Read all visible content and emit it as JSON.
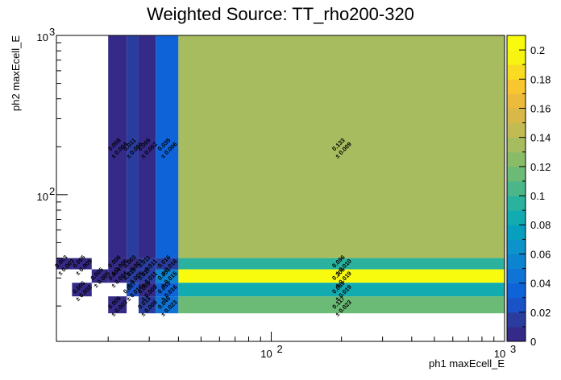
{
  "chart_data": {
    "type": "heatmap",
    "title": "Weighted Source: TT_rho200-320",
    "xlabel": "ph1 maxEcell_E",
    "ylabel": "ph2 maxEcell_E",
    "x_scale": "log",
    "y_scale": "log",
    "xlim": [
      12,
      1000
    ],
    "ylim": [
      12,
      1000
    ],
    "x_ticks": [
      {
        "value": 100,
        "base": "10",
        "exp": "2"
      },
      {
        "value": 1000,
        "base": "10",
        "exp": "3"
      }
    ],
    "y_ticks": [
      {
        "value": 100,
        "base": "10",
        "exp": "2"
      },
      {
        "value": 1000,
        "base": "10",
        "exp": "3"
      }
    ],
    "x_bin_edges": [
      12,
      14,
      17,
      20,
      24,
      27,
      32,
      40,
      1000
    ],
    "y_bin_edges": [
      12,
      15,
      18,
      23,
      28,
      34,
      40,
      1000
    ],
    "cells": [
      {
        "xi": 0,
        "yi": 5,
        "value": 0.003,
        "error": 0.003
      },
      {
        "xi": 1,
        "yi": 5,
        "value": 0.005,
        "error": 0.005
      },
      {
        "xi": 3,
        "yi": 5,
        "value": 0.006,
        "error": 0.006
      },
      {
        "xi": 4,
        "yi": 5,
        "value": 0.003,
        "error": 0.003
      },
      {
        "xi": 5,
        "yi": 5,
        "value": 0.011,
        "error": 0.011
      },
      {
        "xi": 6,
        "yi": 5,
        "value": 0.016,
        "error": 0.016
      },
      {
        "xi": 7,
        "yi": 5,
        "value": 0.096,
        "error": 0.01
      },
      {
        "xi": 2,
        "yi": 4,
        "value": 0.005,
        "error": 0.005
      },
      {
        "xi": 3,
        "yi": 4,
        "value": 0.004,
        "error": 0.004
      },
      {
        "xi": 4,
        "yi": 4,
        "value": 0.013,
        "error": 0.008
      },
      {
        "xi": 5,
        "yi": 4,
        "value": 0.017,
        "error": 0.011
      },
      {
        "xi": 6,
        "yi": 4,
        "value": 0.051,
        "error": 0.015
      },
      {
        "xi": 7,
        "yi": 4,
        "value": 0.205,
        "error": 0.019
      },
      {
        "xi": 1,
        "yi": 3,
        "value": 0.005,
        "error": 0.002
      },
      {
        "xi": 4,
        "yi": 3,
        "value": 0.027,
        "error": 0.016
      },
      {
        "xi": 5,
        "yi": 3,
        "value": 0.009,
        "error": 0.009
      },
      {
        "xi": 6,
        "yi": 3,
        "value": 0.033,
        "error": 0.016
      },
      {
        "xi": 7,
        "yi": 3,
        "value": 0.089,
        "error": 0.019
      },
      {
        "xi": 3,
        "yi": 2,
        "value": 0.005,
        "error": 0.003
      },
      {
        "xi": 5,
        "yi": 2,
        "value": 0.013,
        "error": 0.008
      },
      {
        "xi": 6,
        "yi": 2,
        "value": 0.045,
        "error": 0.023
      },
      {
        "xi": 7,
        "yi": 2,
        "value": 0.117,
        "error": 0.023
      },
      {
        "xi": 3,
        "yi": 6,
        "value": 0.008,
        "error": 0.004
      },
      {
        "xi": 4,
        "yi": 6,
        "value": 0.011,
        "error": 0.006
      },
      {
        "xi": 5,
        "yi": 6,
        "value": 0.005,
        "error": 0.002
      },
      {
        "xi": 6,
        "yi": 6,
        "value": 0.035,
        "error": 0.006
      },
      {
        "xi": 7,
        "yi": 6,
        "value": 0.133,
        "error": 0.009
      }
    ],
    "colorbar": {
      "min": 0,
      "max": 0.21,
      "ticks": [
        "0",
        "0.02",
        "0.04",
        "0.06",
        "0.08",
        "0.1",
        "0.12",
        "0.14",
        "0.16",
        "0.18",
        "0.2"
      ],
      "palette": [
        "#352a87",
        "#2a3d9e",
        "#1a52c8",
        "#0f63d9",
        "#1074d6",
        "#0d84cf",
        "#0c93c9",
        "#06a0be",
        "#12abb0",
        "#2ab29e",
        "#4bb789",
        "#6bbb76",
        "#8abc68",
        "#a7bc5f",
        "#c2bb54",
        "#d8b948",
        "#ecbb3c",
        "#f8c72f",
        "#f9dc22",
        "#f6f410",
        "#f9fb0e"
      ]
    }
  }
}
